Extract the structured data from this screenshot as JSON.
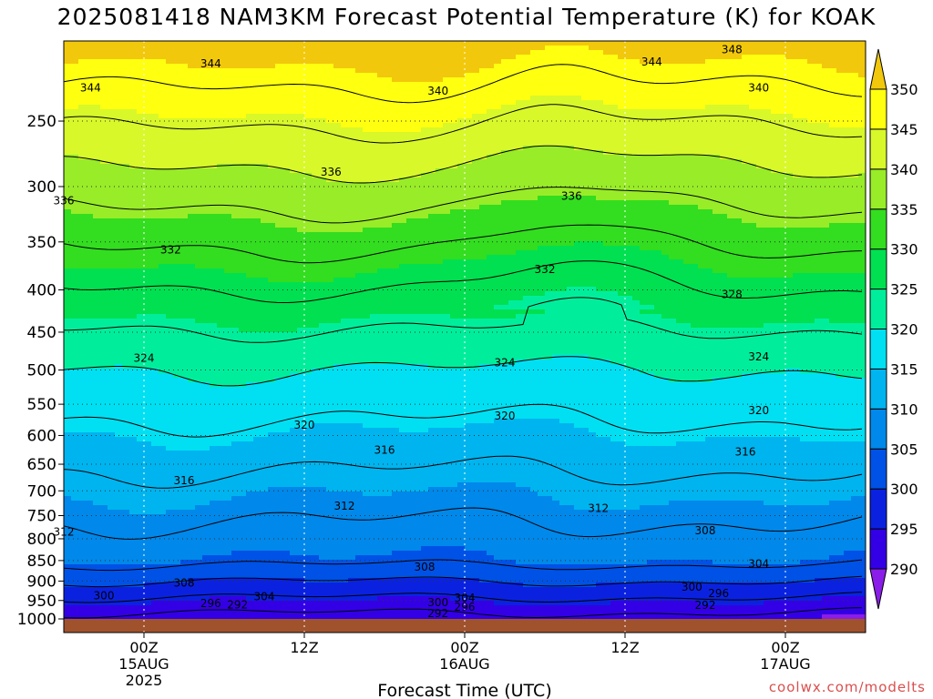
{
  "chart_data": {
    "type": "heatmap",
    "title": "2025081418 NAM3KM Forecast Potential Temperature (K) for KOAK",
    "xlabel": "Forecast Time (UTC)",
    "ylabel": "",
    "y_scale": "log-pressure (hPa, reversed)",
    "ylim": [
      1000,
      200
    ],
    "y_ticks": [
      250,
      300,
      350,
      400,
      450,
      500,
      550,
      600,
      650,
      700,
      750,
      800,
      850,
      900,
      950,
      1000
    ],
    "x_start": "2025-08-14 18Z",
    "x_end": "2025-08-17 06Z",
    "x_ticks": [
      {
        "time": "2025-08-15 00Z",
        "lines": [
          "00Z",
          "15AUG",
          "2025"
        ]
      },
      {
        "time": "2025-08-15 12Z",
        "lines": [
          "12Z"
        ]
      },
      {
        "time": "2025-08-16 00Z",
        "lines": [
          "00Z",
          "16AUG"
        ]
      },
      {
        "time": "2025-08-16 12Z",
        "lines": [
          "12Z"
        ]
      },
      {
        "time": "2025-08-17 00Z",
        "lines": [
          "00Z",
          "17AUG"
        ]
      }
    ],
    "grid": true,
    "colorbar": {
      "levels": [
        290,
        295,
        300,
        305,
        310,
        315,
        320,
        325,
        330,
        335,
        340,
        345,
        350
      ],
      "colors": [
        "#8a1de8",
        "#3300e6",
        "#0a22e0",
        "#0052e6",
        "#0088ea",
        "#00b4ef",
        "#00e0f2",
        "#00ee9c",
        "#00e050",
        "#33dd1f",
        "#99ec28",
        "#d8f82a",
        "#ffff10",
        "#f2c80c"
      ],
      "labels": [
        "290",
        "295",
        "300",
        "305",
        "310",
        "315",
        "320",
        "325",
        "330",
        "335",
        "340",
        "345",
        "350"
      ]
    },
    "contour_levels": [
      292,
      296,
      300,
      304,
      308,
      312,
      316,
      320,
      324,
      328,
      332,
      336,
      340,
      344,
      348
    ],
    "contour_labels": [
      {
        "value": "348",
        "time": "2025-08-16 20Z",
        "pressure": 205
      },
      {
        "value": "344",
        "time": "2025-08-15 05Z",
        "pressure": 213
      },
      {
        "value": "344",
        "time": "2025-08-16 14Z",
        "pressure": 212
      },
      {
        "value": "344",
        "time": "2025-08-14 20Z",
        "pressure": 228
      },
      {
        "value": "340",
        "time": "2025-08-15 22Z",
        "pressure": 230
      },
      {
        "value": "340",
        "time": "2025-08-16 22Z",
        "pressure": 228
      },
      {
        "value": "336",
        "time": "2025-08-15 14Z",
        "pressure": 288
      },
      {
        "value": "336",
        "time": "2025-08-16 08Z",
        "pressure": 308
      },
      {
        "value": "336",
        "time": "2025-08-14 18Z",
        "pressure": 312
      },
      {
        "value": "332",
        "time": "2025-08-15 02Z",
        "pressure": 358
      },
      {
        "value": "332",
        "time": "2025-08-16 06Z",
        "pressure": 378
      },
      {
        "value": "328",
        "time": "2025-08-16 20Z",
        "pressure": 405
      },
      {
        "value": "324",
        "time": "2025-08-15 00Z",
        "pressure": 484
      },
      {
        "value": "324",
        "time": "2025-08-16 03Z",
        "pressure": 490
      },
      {
        "value": "324",
        "time": "2025-08-16 22Z",
        "pressure": 482
      },
      {
        "value": "320",
        "time": "2025-08-15 12Z",
        "pressure": 583
      },
      {
        "value": "320",
        "time": "2025-08-16 03Z",
        "pressure": 568
      },
      {
        "value": "320",
        "time": "2025-08-16 22Z",
        "pressure": 560
      },
      {
        "value": "316",
        "time": "2025-08-15 18Z",
        "pressure": 625
      },
      {
        "value": "316",
        "time": "2025-08-16 21Z",
        "pressure": 628
      },
      {
        "value": "316",
        "time": "2025-08-15 03Z",
        "pressure": 680
      },
      {
        "value": "312",
        "time": "2025-08-15 15Z",
        "pressure": 730
      },
      {
        "value": "312",
        "time": "2025-08-16 10Z",
        "pressure": 735
      },
      {
        "value": "312",
        "time": "2025-08-14 18Z",
        "pressure": 785
      },
      {
        "value": "308",
        "time": "2025-08-16 18Z",
        "pressure": 782
      },
      {
        "value": "308",
        "time": "2025-08-15 21Z",
        "pressure": 865
      },
      {
        "value": "308",
        "time": "2025-08-15 03Z",
        "pressure": 905
      },
      {
        "value": "304",
        "time": "2025-08-16 22Z",
        "pressure": 858
      },
      {
        "value": "304",
        "time": "2025-08-15 09Z",
        "pressure": 940
      },
      {
        "value": "304",
        "time": "2025-08-16 00Z",
        "pressure": 943
      },
      {
        "value": "300",
        "time": "2025-08-14 21Z",
        "pressure": 938
      },
      {
        "value": "300",
        "time": "2025-08-16 17Z",
        "pressure": 915
      },
      {
        "value": "300",
        "time": "2025-08-15 22Z",
        "pressure": 955
      },
      {
        "value": "296",
        "time": "2025-08-16 19Z",
        "pressure": 932
      },
      {
        "value": "296",
        "time": "2025-08-15 05Z",
        "pressure": 958
      },
      {
        "value": "296",
        "time": "2025-08-16 00Z",
        "pressure": 968
      },
      {
        "value": "292",
        "time": "2025-08-15 07Z",
        "pressure": 962
      },
      {
        "value": "292",
        "time": "2025-08-16 18Z",
        "pressure": 963
      },
      {
        "value": "292",
        "time": "2025-08-15 22Z",
        "pressure": 985
      }
    ],
    "ground_color": "#a0522d"
  },
  "credit": "coolwx.com/modelts"
}
